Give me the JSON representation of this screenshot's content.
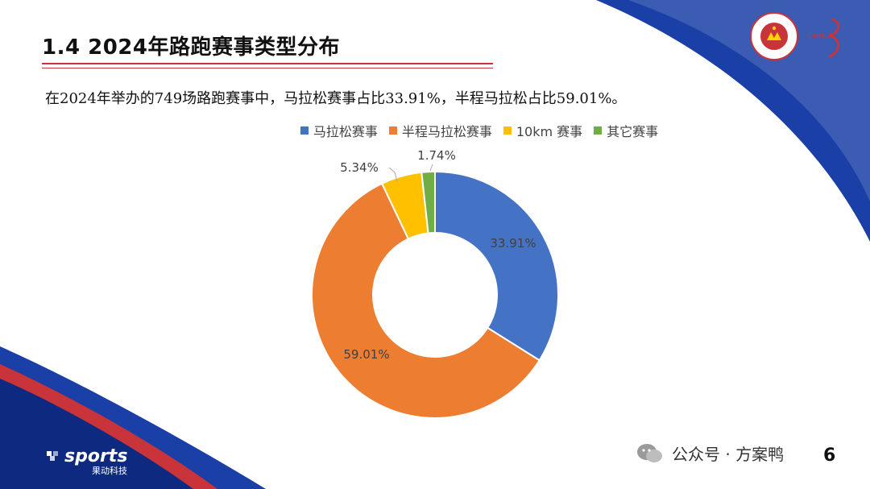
{
  "slide": {
    "title": "1.4 2024年路跑赛事类型分布",
    "summary": "在2024年举办的749场路跑赛事中，马拉松赛事占比33.91%，半程马拉松占比59.01%。",
    "page_number": "6",
    "watermark_brand": "sports",
    "footer_logo": {
      "name": "sports",
      "subtitle": "果动科技"
    },
    "wechat_attribution": "公众号 · 方案鸭",
    "badge_text": "CHINESE ATHLETICS ASSOCIATION",
    "brand_mark_text": "CHINA"
  },
  "colors": {
    "accent_blue": "#1a3fa6",
    "title_rule": "#c8343a"
  },
  "chart_data": {
    "type": "pie",
    "variant": "donut",
    "legend_position": "top",
    "categories": [
      "马拉松赛事",
      "半程马拉松赛事",
      "10km 赛事",
      "其它赛事"
    ],
    "values": [
      33.91,
      59.01,
      5.34,
      1.74
    ],
    "labels": [
      "33.91%",
      "59.01%",
      "5.34%",
      "1.74%"
    ],
    "colors": [
      "#4472c4",
      "#ed7d31",
      "#ffc000",
      "#70ad47"
    ]
  }
}
